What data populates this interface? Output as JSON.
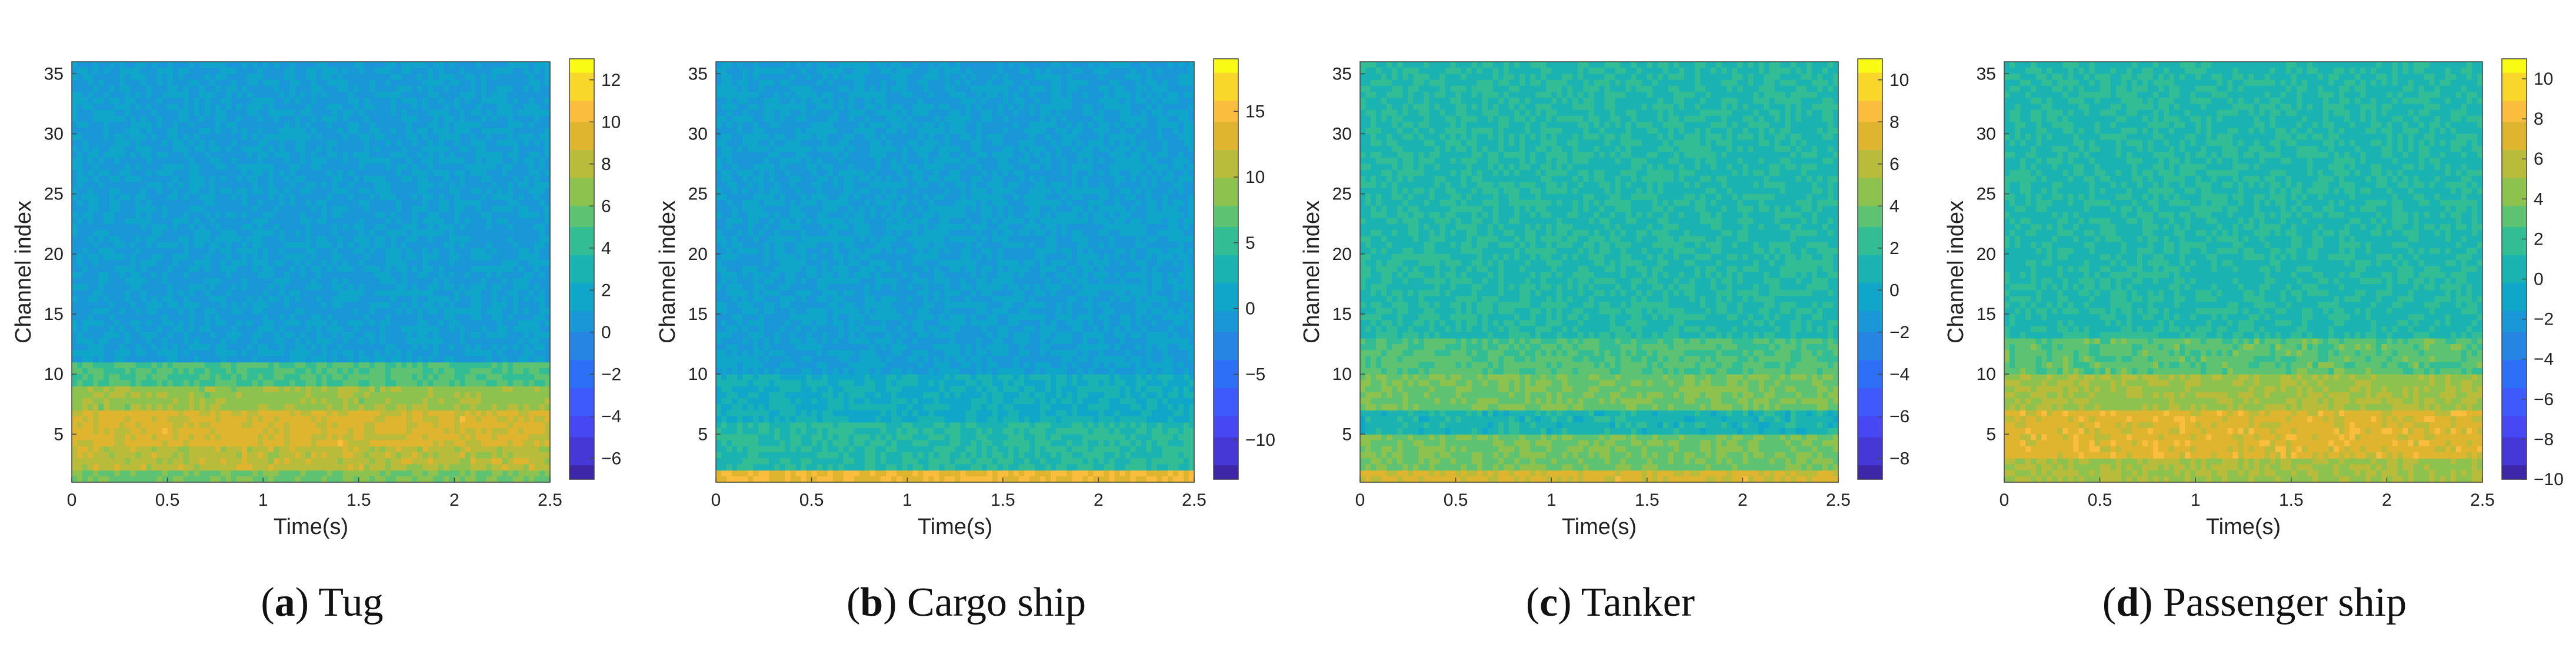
{
  "chart_data": [
    {
      "type": "heatmap",
      "caption_letter": "a",
      "caption_text": "Tug",
      "xlabel": "Time(s)",
      "ylabel": "Channel index",
      "xlim": [
        0,
        2.5
      ],
      "ylim": [
        1,
        36
      ],
      "xticks": [
        "0",
        "0.5",
        "1",
        "1.5",
        "2",
        "2.5"
      ],
      "yticks": [
        "5",
        "10",
        "15",
        "20",
        "25",
        "30",
        "35"
      ],
      "colorbar_ticks": [
        "12",
        "10",
        "8",
        "6",
        "4",
        "2",
        "0",
        "-2",
        "-4",
        "-6"
      ],
      "colorbar_range": [
        -7,
        13
      ],
      "band_values": [
        {
          "from": 1,
          "to": 2,
          "value": 6
        },
        {
          "from": 2,
          "to": 4,
          "value": 8
        },
        {
          "from": 4,
          "to": 7,
          "value": 9
        },
        {
          "from": 7,
          "to": 9,
          "value": 7
        },
        {
          "from": 9,
          "to": 11,
          "value": 5
        },
        {
          "from": 11,
          "to": 36,
          "value": 1
        }
      ]
    },
    {
      "type": "heatmap",
      "caption_letter": "b",
      "caption_text": "Cargo ship",
      "xlabel": "Time(s)",
      "ylabel": "Channel index",
      "xlim": [
        0,
        2.5
      ],
      "ylim": [
        1,
        36
      ],
      "xticks": [
        "0",
        "0.5",
        "1",
        "1.5",
        "2",
        "2.5"
      ],
      "yticks": [
        "5",
        "10",
        "15",
        "20",
        "25",
        "30",
        "35"
      ],
      "colorbar_ticks": [
        "15",
        "10",
        "5",
        "0",
        "-5",
        "-10"
      ],
      "colorbar_range": [
        -13,
        19
      ],
      "band_values": [
        {
          "from": 1,
          "to": 2,
          "value": 14
        },
        {
          "from": 2,
          "to": 6,
          "value": 4
        },
        {
          "from": 6,
          "to": 10,
          "value": 2
        },
        {
          "from": 10,
          "to": 36,
          "value": 0
        }
      ]
    },
    {
      "type": "heatmap",
      "caption_letter": "c",
      "caption_text": "Tanker",
      "xlabel": "Time(s)",
      "ylabel": "Channel index",
      "xlim": [
        0,
        2.5
      ],
      "ylim": [
        1,
        36
      ],
      "xticks": [
        "0",
        "0.5",
        "1",
        "1.5",
        "2",
        "2.5"
      ],
      "yticks": [
        "5",
        "10",
        "15",
        "20",
        "25",
        "30",
        "35"
      ],
      "colorbar_ticks": [
        "10",
        "8",
        "6",
        "4",
        "2",
        "0",
        "-2",
        "-4",
        "-6",
        "-8"
      ],
      "colorbar_range": [
        -9,
        11
      ],
      "band_values": [
        {
          "from": 1,
          "to": 2,
          "value": 7
        },
        {
          "from": 2,
          "to": 5,
          "value": 4
        },
        {
          "from": 5,
          "to": 7,
          "value": 1
        },
        {
          "from": 7,
          "to": 10,
          "value": 4
        },
        {
          "from": 10,
          "to": 13,
          "value": 3
        },
        {
          "from": 13,
          "to": 36,
          "value": 1.5
        }
      ]
    },
    {
      "type": "heatmap",
      "caption_letter": "d",
      "caption_text": "Passenger ship",
      "xlabel": "Time(s)",
      "ylabel": "Channel index",
      "xlim": [
        0,
        2.5
      ],
      "ylim": [
        1,
        36
      ],
      "xticks": [
        "0",
        "0.5",
        "1",
        "1.5",
        "2",
        "2.5"
      ],
      "yticks": [
        "5",
        "10",
        "15",
        "20",
        "25",
        "30",
        "35"
      ],
      "colorbar_ticks": [
        "10",
        "8",
        "6",
        "4",
        "2",
        "0",
        "-2",
        "-4",
        "-6",
        "-8",
        "-10"
      ],
      "colorbar_range": [
        -10,
        11
      ],
      "band_values": [
        {
          "from": 1,
          "to": 3,
          "value": 5
        },
        {
          "from": 3,
          "to": 7,
          "value": 7
        },
        {
          "from": 7,
          "to": 10,
          "value": 5
        },
        {
          "from": 10,
          "to": 13,
          "value": 3
        },
        {
          "from": 13,
          "to": 36,
          "value": 1
        }
      ]
    }
  ],
  "colormap": [
    "#3e26a8",
    "#4538d7",
    "#4748f4",
    "#3e5afd",
    "#2d70f7",
    "#2685e3",
    "#1a97d6",
    "#0fa6c9",
    "#1ab3b2",
    "#33bd95",
    "#5dc372",
    "#8dc24f",
    "#b9bb3a",
    "#dfb42f",
    "#fbbd3d",
    "#f9d72a",
    "#f9fb15"
  ]
}
